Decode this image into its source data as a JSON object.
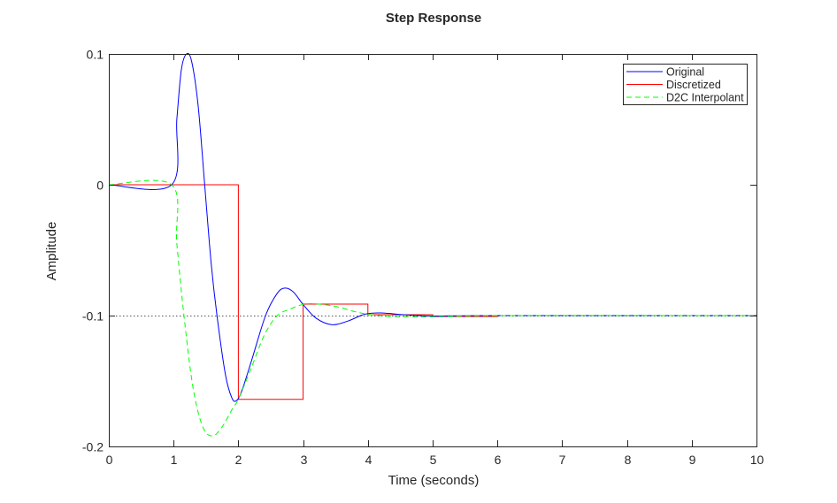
{
  "chart_data": {
    "type": "line",
    "title": "Step Response",
    "xlabel": "Time (seconds)",
    "ylabel": "Amplitude",
    "xlim": [
      0,
      10
    ],
    "ylim": [
      -0.2,
      0.1
    ],
    "xticks": [
      0,
      1,
      2,
      3,
      4,
      5,
      6,
      7,
      8,
      9,
      10
    ],
    "xtick_labels": [
      "0",
      "1",
      "2",
      "3",
      "4",
      "5",
      "6",
      "7",
      "8",
      "9",
      "10"
    ],
    "yticks": [
      0.1,
      0,
      -0.1,
      -0.2
    ],
    "ytick_labels": [
      "0.1",
      "0",
      "-0.1",
      "-0.2"
    ],
    "reference_line": -0.1,
    "legend_position": "top-right",
    "series": [
      {
        "name": "Original",
        "color": "#0000ff",
        "style": "solid",
        "kind": "smooth",
        "x": [
          0,
          0.97,
          1.05,
          1.12,
          1.2,
          1.28,
          1.38,
          1.48,
          1.58,
          1.67,
          1.8,
          1.9,
          1.97,
          2.05,
          2.2,
          2.42,
          2.6,
          2.72,
          2.85,
          3.0,
          3.2,
          3.45,
          3.7,
          3.95,
          4.2,
          4.6,
          5,
          6,
          10
        ],
        "y": [
          0,
          0,
          0.05,
          0.088,
          0.1,
          0.094,
          0.06,
          0,
          -0.06,
          -0.1,
          -0.145,
          -0.163,
          -0.165,
          -0.158,
          -0.135,
          -0.1,
          -0.083,
          -0.079,
          -0.082,
          -0.0915,
          -0.102,
          -0.107,
          -0.104,
          -0.099,
          -0.098,
          -0.0995,
          -0.1003,
          -0.1,
          -0.1
        ]
      },
      {
        "name": "Discretized",
        "color": "#ff0000",
        "style": "solid",
        "kind": "step",
        "x": [
          0,
          1,
          2,
          3,
          4,
          5,
          6,
          7,
          8,
          9,
          10
        ],
        "y": [
          0,
          0,
          -0.164,
          -0.0912,
          -0.0993,
          -0.1007,
          -0.1,
          -0.1,
          -0.1,
          -0.1,
          -0.1
        ]
      },
      {
        "name": "D2C Interpolant",
        "color": "#00ff00",
        "style": "dashed",
        "kind": "smooth",
        "x": [
          0,
          0.97,
          1.05,
          1.16,
          1.3,
          1.45,
          1.6,
          1.75,
          1.9,
          2.0,
          2.2,
          2.4,
          2.6,
          2.8,
          3.0,
          3.2,
          3.5,
          3.8,
          4.0,
          4.3,
          4.7,
          5.2,
          6,
          10
        ],
        "y": [
          0,
          0,
          -0.045,
          -0.1,
          -0.155,
          -0.185,
          -0.192,
          -0.185,
          -0.172,
          -0.164,
          -0.14,
          -0.115,
          -0.1,
          -0.095,
          -0.0915,
          -0.091,
          -0.093,
          -0.097,
          -0.099,
          -0.1005,
          -0.101,
          -0.1008,
          -0.1,
          -0.1
        ]
      }
    ]
  }
}
